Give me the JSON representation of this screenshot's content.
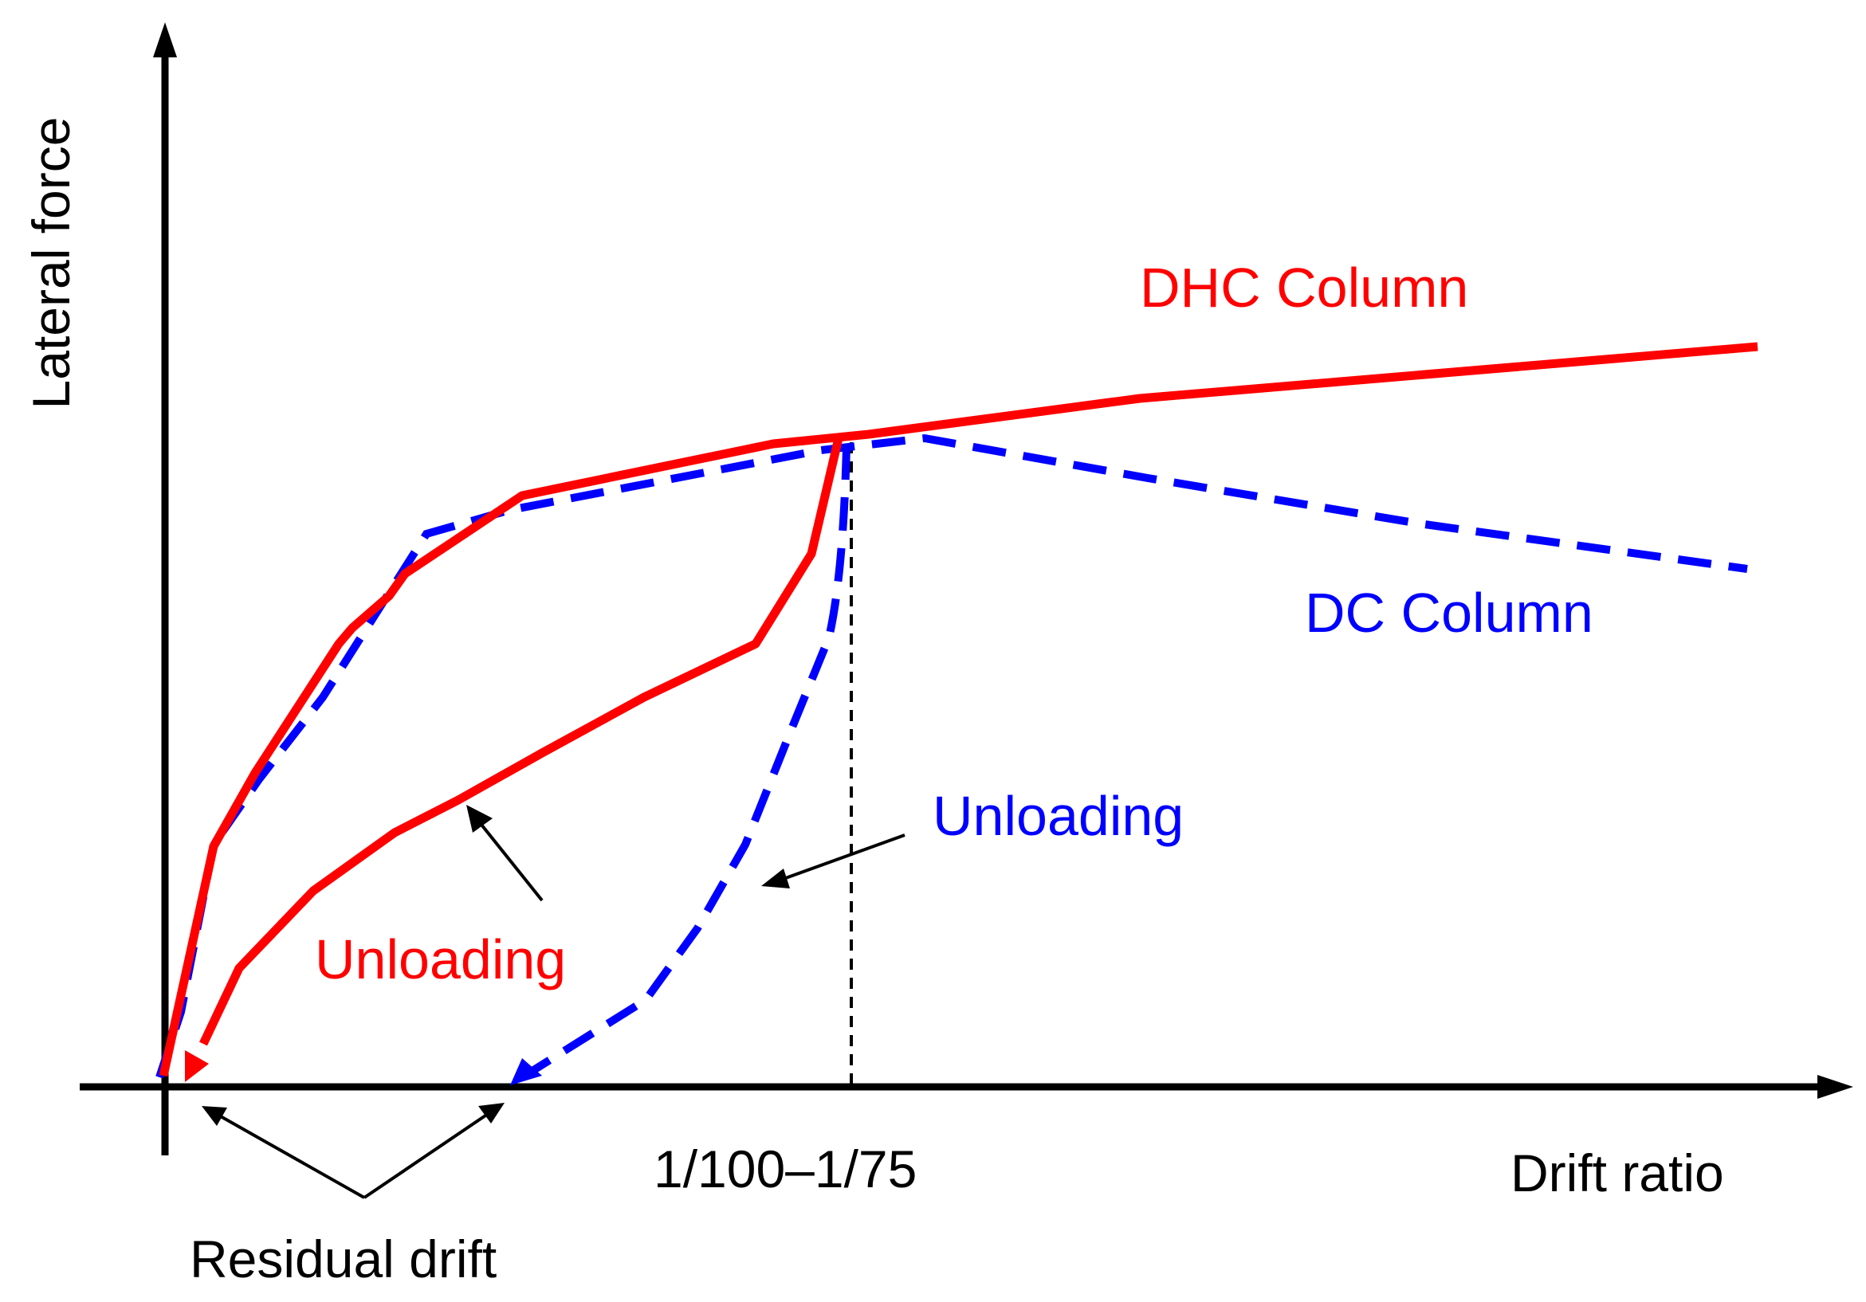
{
  "axes": {
    "y_label": "Lateral force",
    "x_label": "Drift ratio"
  },
  "colors": {
    "axis": "#000000",
    "dhc": "#ff0000",
    "dc": "#0000ff"
  },
  "labels": {
    "dhc_column": "DHC Column",
    "dc_column": "DC Column",
    "dhc_unloading": "Unloading",
    "dc_unloading": "Unloading",
    "drift_range": "1/100–1/75",
    "residual_drift": "Residual drift"
  }
}
